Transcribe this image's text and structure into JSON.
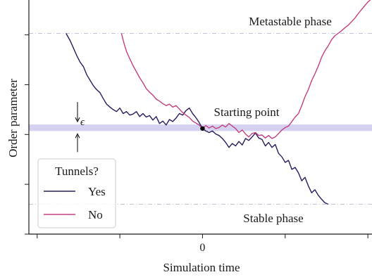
{
  "chart_data": {
    "type": "line",
    "xlabel": "Simulation time",
    "ylabel": "Order parameter",
    "x_ticks": [
      {
        "value": -2,
        "label": ""
      },
      {
        "value": -1,
        "label": ""
      },
      {
        "value": 0,
        "label": "0"
      },
      {
        "value": 1,
        "label": ""
      },
      {
        "value": 2,
        "label": ""
      }
    ],
    "y_ticks": [
      {
        "value": -2,
        "label": ""
      },
      {
        "value": -1,
        "label": ""
      },
      {
        "value": 0,
        "label": ""
      },
      {
        "value": 1,
        "label": ""
      },
      {
        "value": 2,
        "label": ""
      }
    ],
    "xlim": [
      -2.1,
      2.05
    ],
    "ylim": [
      -2.0,
      2.7
    ],
    "grid": false,
    "colors": {
      "yes": "#2a1a5e",
      "no": "#c2407f",
      "band": "#c9c5ee",
      "phase_line": "#c0c0d8",
      "axes": "#1a1a1a"
    },
    "band": {
      "y0": 0.07,
      "y1": 0.2
    },
    "phase_lines": [
      {
        "y": 2.03,
        "label": "Metastable phase"
      },
      {
        "y": -1.4,
        "label": "Stable phase"
      }
    ],
    "annotations": {
      "starting_point": "Starting point",
      "epsilon": "ϵ"
    },
    "start_point": {
      "x": 0,
      "y": 0.12
    },
    "legend": {
      "title": "Tunnels?",
      "placement": "lower-left",
      "entries": [
        "Yes",
        "No"
      ]
    },
    "series": [
      {
        "name": "Yes",
        "color": "#2a1a5e",
        "points": [
          [
            -1.65,
            2.03
          ],
          [
            -1.6,
            1.88
          ],
          [
            -1.56,
            1.73
          ],
          [
            -1.52,
            1.58
          ],
          [
            -1.48,
            1.45
          ],
          [
            -1.44,
            1.36
          ],
          [
            -1.4,
            1.2
          ],
          [
            -1.36,
            1.09
          ],
          [
            -1.32,
            0.98
          ],
          [
            -1.28,
            0.9
          ],
          [
            -1.24,
            0.84
          ],
          [
            -1.2,
            0.72
          ],
          [
            -1.16,
            0.61
          ],
          [
            -1.12,
            0.55
          ],
          [
            -1.08,
            0.5
          ],
          [
            -1.04,
            0.46
          ],
          [
            -1.0,
            0.53
          ],
          [
            -0.96,
            0.42
          ],
          [
            -0.92,
            0.46
          ],
          [
            -0.88,
            0.39
          ],
          [
            -0.84,
            0.41
          ],
          [
            -0.8,
            0.46
          ],
          [
            -0.76,
            0.36
          ],
          [
            -0.72,
            0.42
          ],
          [
            -0.68,
            0.35
          ],
          [
            -0.64,
            0.38
          ],
          [
            -0.6,
            0.29
          ],
          [
            -0.56,
            0.36
          ],
          [
            -0.52,
            0.22
          ],
          [
            -0.48,
            0.27
          ],
          [
            -0.44,
            0.19
          ],
          [
            -0.4,
            0.3
          ],
          [
            -0.36,
            0.26
          ],
          [
            -0.32,
            0.33
          ],
          [
            -0.28,
            0.42
          ],
          [
            -0.24,
            0.39
          ],
          [
            -0.2,
            0.48
          ],
          [
            -0.16,
            0.53
          ],
          [
            -0.12,
            0.42
          ],
          [
            -0.08,
            0.34
          ],
          [
            -0.04,
            0.24
          ],
          [
            0.0,
            0.12
          ],
          [
            0.04,
            0.07
          ],
          [
            0.08,
            0.04
          ],
          [
            0.12,
            0.07
          ],
          [
            0.16,
            0.01
          ],
          [
            0.2,
            -0.02
          ],
          [
            0.24,
            -0.08
          ],
          [
            0.28,
            -0.16
          ],
          [
            0.32,
            -0.26
          ],
          [
            0.36,
            -0.18
          ],
          [
            0.4,
            -0.23
          ],
          [
            0.44,
            -0.14
          ],
          [
            0.48,
            -0.21
          ],
          [
            0.52,
            -0.08
          ],
          [
            0.56,
            -0.12
          ],
          [
            0.6,
            -0.05
          ],
          [
            0.64,
            0.03
          ],
          [
            0.68,
            -0.07
          ],
          [
            0.72,
            -0.1
          ],
          [
            0.76,
            -0.23
          ],
          [
            0.8,
            -0.16
          ],
          [
            0.84,
            -0.26
          ],
          [
            0.88,
            -0.2
          ],
          [
            0.92,
            -0.38
          ],
          [
            0.96,
            -0.45
          ],
          [
            1.0,
            -0.56
          ],
          [
            1.04,
            -0.52
          ],
          [
            1.08,
            -0.7
          ],
          [
            1.12,
            -0.66
          ],
          [
            1.16,
            -0.77
          ],
          [
            1.2,
            -0.93
          ],
          [
            1.24,
            -0.86
          ],
          [
            1.28,
            -1.03
          ],
          [
            1.32,
            -1.17
          ],
          [
            1.36,
            -1.11
          ],
          [
            1.4,
            -1.22
          ],
          [
            1.44,
            -1.3
          ],
          [
            1.48,
            -1.37
          ],
          [
            1.52,
            -1.4
          ]
        ]
      },
      {
        "name": "No",
        "color": "#c2407f",
        "points": [
          [
            -0.98,
            2.03
          ],
          [
            -0.95,
            1.83
          ],
          [
            -0.92,
            1.67
          ],
          [
            -0.88,
            1.52
          ],
          [
            -0.84,
            1.38
          ],
          [
            -0.8,
            1.26
          ],
          [
            -0.76,
            1.14
          ],
          [
            -0.72,
            1.04
          ],
          [
            -0.68,
            0.92
          ],
          [
            -0.64,
            0.85
          ],
          [
            -0.6,
            0.79
          ],
          [
            -0.56,
            0.71
          ],
          [
            -0.52,
            0.67
          ],
          [
            -0.48,
            0.62
          ],
          [
            -0.44,
            0.58
          ],
          [
            -0.4,
            0.61
          ],
          [
            -0.36,
            0.55
          ],
          [
            -0.32,
            0.58
          ],
          [
            -0.28,
            0.51
          ],
          [
            -0.24,
            0.44
          ],
          [
            -0.2,
            0.39
          ],
          [
            -0.16,
            0.34
          ],
          [
            -0.12,
            0.27
          ],
          [
            -0.08,
            0.23
          ],
          [
            -0.04,
            0.19
          ],
          [
            0.0,
            0.12
          ],
          [
            0.04,
            0.18
          ],
          [
            0.08,
            0.13
          ],
          [
            0.12,
            0.17
          ],
          [
            0.16,
            0.12
          ],
          [
            0.2,
            0.14
          ],
          [
            0.24,
            0.19
          ],
          [
            0.28,
            0.15
          ],
          [
            0.32,
            0.22
          ],
          [
            0.36,
            0.17
          ],
          [
            0.4,
            0.12
          ],
          [
            0.44,
            0.04
          ],
          [
            0.48,
            0.09
          ],
          [
            0.52,
            0.01
          ],
          [
            0.56,
            -0.05
          ],
          [
            0.6,
            0.02
          ],
          [
            0.64,
            0.04
          ],
          [
            0.68,
            -0.02
          ],
          [
            0.72,
            -0.01
          ],
          [
            0.76,
            -0.07
          ],
          [
            0.8,
            -0.02
          ],
          [
            0.84,
            -0.08
          ],
          [
            0.88,
            -0.05
          ],
          [
            0.92,
            0.02
          ],
          [
            0.96,
            0.09
          ],
          [
            1.0,
            0.14
          ],
          [
            1.04,
            0.17
          ],
          [
            1.08,
            0.26
          ],
          [
            1.12,
            0.35
          ],
          [
            1.16,
            0.42
          ],
          [
            1.2,
            0.58
          ],
          [
            1.24,
            0.76
          ],
          [
            1.28,
            0.9
          ],
          [
            1.32,
            1.08
          ],
          [
            1.36,
            1.22
          ],
          [
            1.4,
            1.37
          ],
          [
            1.44,
            1.55
          ],
          [
            1.48,
            1.68
          ],
          [
            1.52,
            1.78
          ],
          [
            1.56,
            1.9
          ],
          [
            1.6,
            1.98
          ],
          [
            1.64,
            2.03
          ],
          [
            1.68,
            2.08
          ],
          [
            1.72,
            2.14
          ],
          [
            1.76,
            2.19
          ],
          [
            1.8,
            2.26
          ],
          [
            1.84,
            2.33
          ],
          [
            1.88,
            2.42
          ],
          [
            1.92,
            2.5
          ],
          [
            1.96,
            2.58
          ],
          [
            2.0,
            2.66
          ],
          [
            2.03,
            2.7
          ]
        ]
      }
    ]
  }
}
